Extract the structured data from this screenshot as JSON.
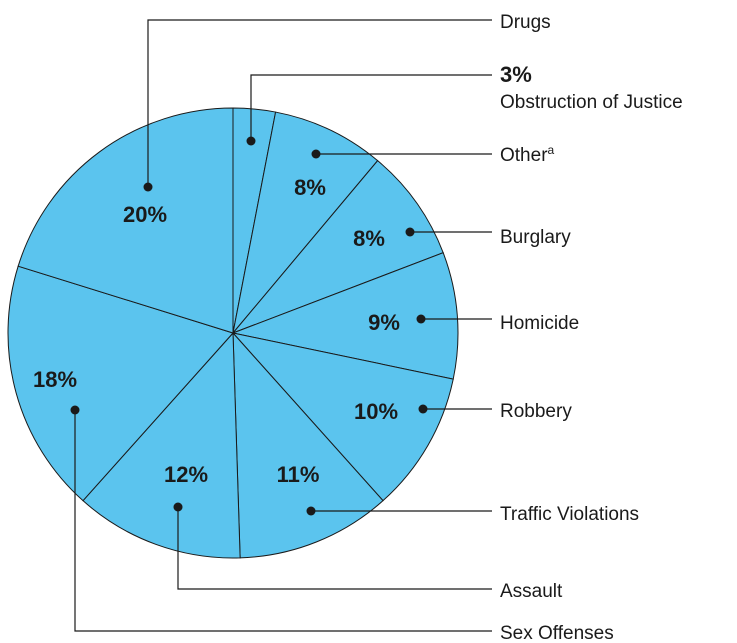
{
  "chart_data": {
    "type": "pie",
    "title": "",
    "categories": [
      "Obstruction of Justice",
      "Other",
      "Burglary",
      "Homicide",
      "Robbery",
      "Traffic Violations",
      "Assault",
      "Sex Offenses",
      "Drugs"
    ],
    "values": [
      3,
      8,
      8,
      9,
      10,
      11,
      12,
      18,
      20
    ],
    "value_labels": [
      "3%",
      "8%",
      "8%",
      "9%",
      "10%",
      "11%",
      "12%",
      "18%",
      "20%"
    ],
    "other_superscript": "a",
    "slice_color": "#5BC4EE",
    "outline_color": "#1a1a1a"
  }
}
